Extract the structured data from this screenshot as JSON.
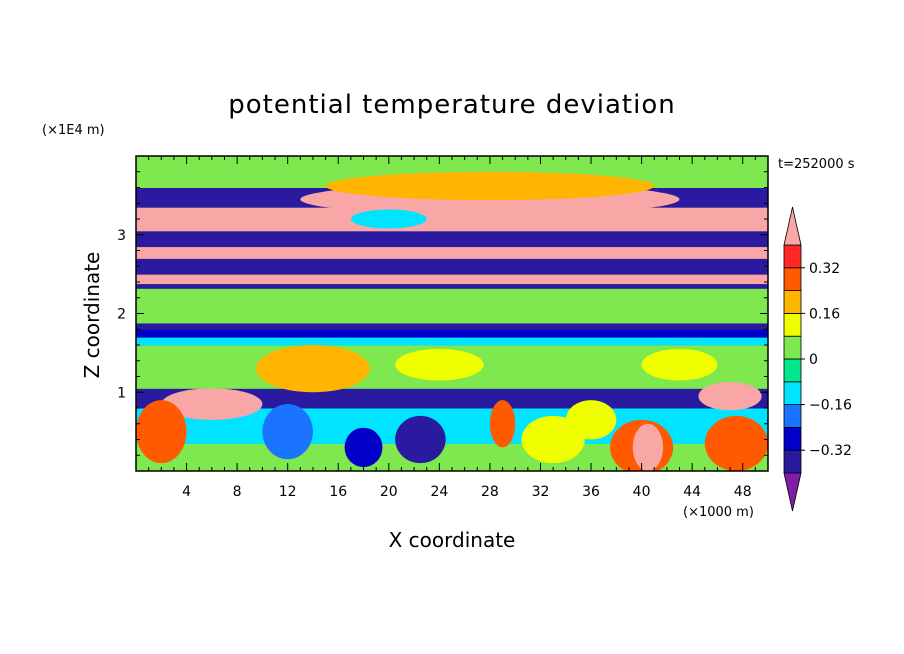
{
  "chart_data": {
    "type": "heatmap",
    "title": "potential temperature deviation",
    "xlabel": "X coordinate",
    "ylabel": "Z coordinate",
    "x_unit": "(×1000 m)",
    "y_unit": "(×1E4 m)",
    "time_label": "t=252000 s",
    "xlim": [
      0,
      50
    ],
    "ylim": [
      0,
      4
    ],
    "x_ticks": [
      4,
      8,
      12,
      16,
      20,
      24,
      28,
      32,
      36,
      40,
      44,
      48
    ],
    "y_ticks": [
      1,
      2,
      3
    ],
    "colorbar": {
      "tick_values": [
        0.32,
        0.16,
        0,
        -0.16,
        -0.32
      ],
      "tick_labels": [
        "0.32",
        "0.16",
        "0",
        "−0.16",
        "−0.32"
      ],
      "levels": [
        -0.4,
        -0.32,
        -0.24,
        -0.16,
        -0.08,
        0,
        0.08,
        0.16,
        0.24,
        0.32,
        0.4
      ],
      "colors": [
        "#7f1fa8",
        "#2a1aa0",
        "#0000c8",
        "#1a74ff",
        "#00e4ff",
        "#00e88a",
        "#7ee84e",
        "#f0ff00",
        "#ffb400",
        "#ff5a00",
        "#ff2828",
        "#f9a6a6"
      ],
      "extend": "both"
    },
    "bands": [
      {
        "z": [
          0.0,
          0.35
        ],
        "value": 0.05
      },
      {
        "z": [
          0.35,
          0.8
        ],
        "value": -0.12
      },
      {
        "z": [
          0.8,
          1.05
        ],
        "value": -0.36
      },
      {
        "z": [
          1.05,
          1.4
        ],
        "value": 0.02
      },
      {
        "z": [
          1.4,
          1.6
        ],
        "value": 0.04
      },
      {
        "z": [
          1.6,
          1.7
        ],
        "value": -0.12
      },
      {
        "z": [
          1.7,
          1.8
        ],
        "value": -0.28
      },
      {
        "z": [
          1.8,
          1.88
        ],
        "value": -0.36
      },
      {
        "z": [
          1.88,
          2.05
        ],
        "value": 0.0
      },
      {
        "z": [
          2.05,
          2.2
        ],
        "value": 0.04
      },
      {
        "z": [
          2.2,
          2.32
        ],
        "value": 0.02
      },
      {
        "z": [
          2.32,
          2.38
        ],
        "value": -0.36
      },
      {
        "z": [
          2.38,
          2.5
        ],
        "value": 0.42
      },
      {
        "z": [
          2.5,
          2.7
        ],
        "value": -0.36
      },
      {
        "z": [
          2.7,
          2.85
        ],
        "value": 0.42
      },
      {
        "z": [
          2.85,
          3.05
        ],
        "value": -0.36
      },
      {
        "z": [
          3.05,
          3.35
        ],
        "value": 0.42
      },
      {
        "z": [
          3.35,
          3.6
        ],
        "value": -0.36
      },
      {
        "z": [
          3.6,
          3.8
        ],
        "value": 0.05
      },
      {
        "z": [
          3.8,
          4.0
        ],
        "value": 0.02
      }
    ],
    "features": [
      {
        "x": 14.0,
        "z": 1.3,
        "rx": 4.5,
        "rz": 0.3,
        "value": 0.2
      },
      {
        "x": 24.0,
        "z": 1.35,
        "rx": 3.5,
        "rz": 0.2,
        "value": 0.1
      },
      {
        "x": 43.0,
        "z": 1.35,
        "rx": 3.0,
        "rz": 0.2,
        "value": 0.08
      },
      {
        "x": 28.0,
        "z": 3.45,
        "rx": 15.0,
        "rz": 0.2,
        "value": 0.42
      },
      {
        "x": 28.0,
        "z": 3.62,
        "rx": 13.0,
        "rz": 0.18,
        "value": 0.2
      },
      {
        "x": 20.0,
        "z": 3.2,
        "rx": 3.0,
        "rz": 0.12,
        "value": -0.12
      },
      {
        "x": 6.0,
        "z": 0.85,
        "rx": 4.0,
        "rz": 0.2,
        "value": 0.42
      },
      {
        "x": 47.0,
        "z": 0.95,
        "rx": 2.5,
        "rz": 0.18,
        "value": 0.42
      },
      {
        "x": 2.0,
        "z": 0.5,
        "rx": 2.0,
        "rz": 0.4,
        "value": 0.3
      },
      {
        "x": 40.0,
        "z": 0.3,
        "rx": 2.5,
        "rz": 0.35,
        "value": 0.3
      },
      {
        "x": 40.5,
        "z": 0.3,
        "rx": 1.2,
        "rz": 0.3,
        "value": 0.42
      },
      {
        "x": 47.5,
        "z": 0.35,
        "rx": 2.5,
        "rz": 0.35,
        "value": 0.3
      },
      {
        "x": 22.5,
        "z": 0.4,
        "rx": 2.0,
        "rz": 0.3,
        "value": -0.36
      },
      {
        "x": 18.0,
        "z": 0.3,
        "rx": 1.5,
        "rz": 0.25,
        "value": -0.28
      },
      {
        "x": 33.0,
        "z": 0.4,
        "rx": 2.5,
        "rz": 0.3,
        "value": 0.08
      },
      {
        "x": 12.0,
        "z": 0.5,
        "rx": 2.0,
        "rz": 0.35,
        "value": -0.2
      },
      {
        "x": 29.0,
        "z": 0.6,
        "rx": 1.0,
        "rz": 0.3,
        "value": 0.3
      },
      {
        "x": 36.0,
        "z": 0.65,
        "rx": 2.0,
        "rz": 0.25,
        "value": 0.08
      }
    ]
  }
}
